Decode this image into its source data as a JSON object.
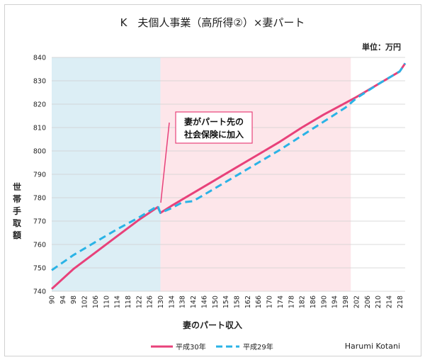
{
  "chart_data": {
    "type": "line",
    "title": "K　夫個人事業（高所得②）×妻パート",
    "unit_label": "単位：万円",
    "xlabel": "妻のパート収入",
    "ylabel": "世帯手取額",
    "credit": "Harumi Kotani",
    "annotation": [
      "妻がパート先の",
      "社会保険に加入"
    ],
    "xlim": [
      90,
      220
    ],
    "ylim": [
      740,
      840
    ],
    "yticks": [
      740,
      750,
      760,
      770,
      780,
      790,
      800,
      810,
      820,
      830,
      840
    ],
    "xticks": [
      90,
      94,
      98,
      102,
      106,
      110,
      114,
      118,
      122,
      126,
      130,
      134,
      138,
      142,
      146,
      150,
      154,
      158,
      162,
      166,
      170,
      174,
      178,
      182,
      186,
      190,
      194,
      198,
      202,
      206,
      210,
      214,
      218
    ],
    "regions": [
      {
        "x": [
          90,
          130
        ],
        "color": "#dceef5"
      },
      {
        "x": [
          130,
          200
        ],
        "color": "#fde6ea"
      }
    ],
    "grid": "horizontal",
    "legend_position": "bottom",
    "series": [
      {
        "name": "平成30年",
        "color": "#e8417a",
        "style": "solid",
        "points": [
          [
            90,
            741
          ],
          [
            98,
            749.5
          ],
          [
            106,
            756.5
          ],
          [
            114,
            763.5
          ],
          [
            122,
            770.5
          ],
          [
            129,
            776
          ],
          [
            130,
            773.5
          ],
          [
            134,
            776.5
          ],
          [
            142,
            782
          ],
          [
            150,
            787.5
          ],
          [
            158,
            793
          ],
          [
            166,
            798.5
          ],
          [
            174,
            804
          ],
          [
            182,
            810
          ],
          [
            190,
            815.5
          ],
          [
            198,
            820.5
          ],
          [
            202,
            823
          ],
          [
            210,
            828.5
          ],
          [
            218,
            834
          ],
          [
            220,
            837.5
          ]
        ]
      },
      {
        "name": "平成29年",
        "color": "#2ab3e6",
        "style": "dashed",
        "points": [
          [
            90,
            749
          ],
          [
            98,
            755.5
          ],
          [
            106,
            761
          ],
          [
            114,
            766.5
          ],
          [
            122,
            771.5
          ],
          [
            129,
            776.5
          ],
          [
            130,
            773.5
          ],
          [
            134,
            775.5
          ],
          [
            138,
            778
          ],
          [
            142,
            778.5
          ],
          [
            150,
            784
          ],
          [
            158,
            789.5
          ],
          [
            166,
            795
          ],
          [
            174,
            800.5
          ],
          [
            182,
            806.5
          ],
          [
            190,
            812.5
          ],
          [
            198,
            818.5
          ],
          [
            202,
            822.5
          ],
          [
            210,
            828.5
          ],
          [
            218,
            834
          ],
          [
            220,
            837.5
          ]
        ]
      }
    ]
  }
}
